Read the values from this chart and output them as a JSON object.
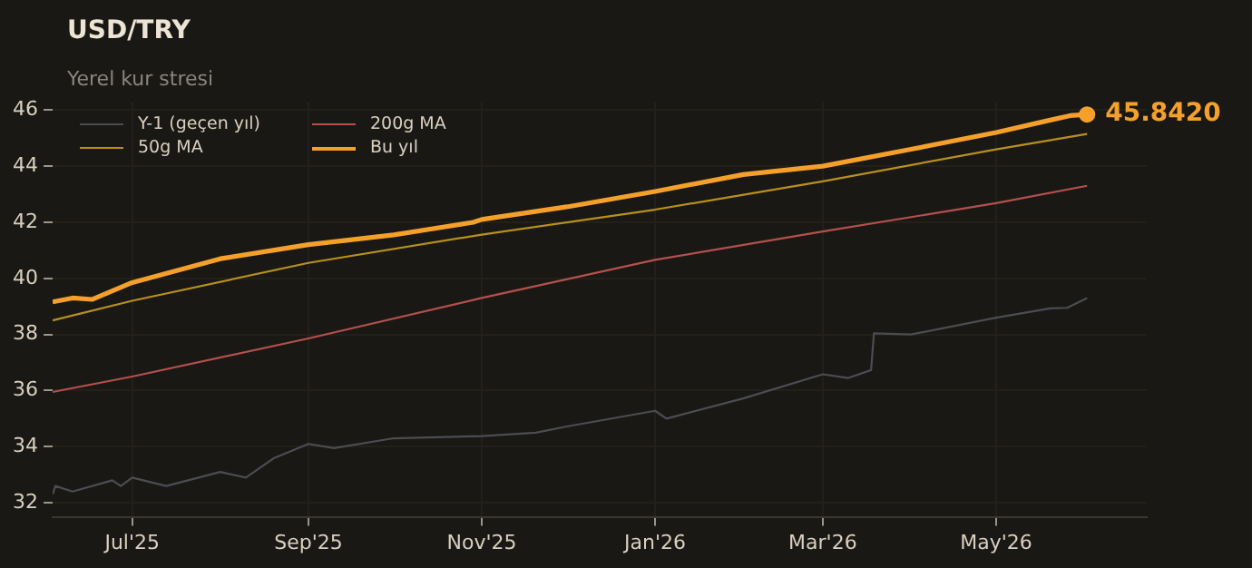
{
  "chart_data": {
    "type": "line",
    "title": "USD/TRY",
    "subtitle": "Yerel kur stresi",
    "xlim": [
      "2025-06-03",
      "2026-06-23"
    ],
    "xticks": [
      {
        "value": "2025-07-01",
        "label": "Jul'25"
      },
      {
        "value": "2025-09-01",
        "label": "Sep'25"
      },
      {
        "value": "2025-11-01",
        "label": "Nov'25"
      },
      {
        "value": "2026-01-01",
        "label": "Jan'26"
      },
      {
        "value": "2026-03-01",
        "label": "Mar'26"
      },
      {
        "value": "2026-05-01",
        "label": "May'26"
      }
    ],
    "ylim": [
      31.5,
      46.3
    ],
    "yticks": [
      32,
      34,
      36,
      38,
      40,
      42,
      44,
      46
    ],
    "grid": true,
    "legend": "top left",
    "marker": "none",
    "line_style": "solid",
    "series": [
      {
        "name": "Y-1 (geçen yıl)",
        "color": "#4a4d52",
        "x": [
          "2025-06-03",
          "2025-06-04",
          "2025-06-10",
          "2025-06-24",
          "2025-06-27",
          "2025-07-01",
          "2025-07-13",
          "2025-08-01",
          "2025-08-10",
          "2025-08-20",
          "2025-09-01",
          "2025-09-10",
          "2025-10-01",
          "2025-11-01",
          "2025-11-20",
          "2025-12-01",
          "2026-01-01",
          "2026-01-05",
          "2026-02-01",
          "2026-03-01",
          "2026-03-10",
          "2026-03-18",
          "2026-03-19",
          "2026-04-01",
          "2026-05-01",
          "2026-05-20",
          "2026-05-26",
          "2026-06-02"
        ],
        "values": [
          32.3,
          32.6,
          32.4,
          32.8,
          32.6,
          32.9,
          32.6,
          33.1,
          32.9,
          33.6,
          34.1,
          33.95,
          34.3,
          34.38,
          34.5,
          34.72,
          35.28,
          35.0,
          35.72,
          36.58,
          36.45,
          36.73,
          38.04,
          38.0,
          38.6,
          38.93,
          38.95,
          39.3
        ]
      },
      {
        "name": "50g MA",
        "color": "#b8901c",
        "x": [
          "2025-06-03",
          "2025-07-01",
          "2025-09-01",
          "2025-11-01",
          "2026-01-01",
          "2026-03-01",
          "2026-05-01",
          "2026-06-02"
        ],
        "values": [
          38.5,
          39.2,
          40.55,
          41.56,
          42.45,
          43.46,
          44.6,
          45.15
        ]
      },
      {
        "name": "200g MA",
        "color": "#b5504c",
        "x": [
          "2025-06-03",
          "2025-07-01",
          "2025-09-01",
          "2025-11-01",
          "2026-01-01",
          "2026-03-01",
          "2026-05-01",
          "2026-06-02"
        ],
        "values": [
          35.95,
          36.5,
          37.86,
          39.3,
          40.66,
          41.67,
          42.68,
          43.3
        ]
      },
      {
        "name": "Bu yıl",
        "color": "#f5a02a",
        "x": [
          "2025-06-03",
          "2025-06-10",
          "2025-06-17",
          "2025-07-01",
          "2025-08-01",
          "2025-09-01",
          "2025-10-01",
          "2025-10-29",
          "2025-11-01",
          "2025-12-01",
          "2026-01-01",
          "2026-02-01",
          "2026-03-01",
          "2026-04-01",
          "2026-05-01",
          "2026-05-20",
          "2026-05-27",
          "2026-06-02"
        ],
        "values": [
          39.16,
          39.3,
          39.25,
          39.85,
          40.7,
          41.2,
          41.55,
          42.0,
          42.1,
          42.55,
          43.1,
          43.7,
          44.0,
          44.6,
          45.2,
          45.64,
          45.8,
          45.842
        ]
      }
    ],
    "annotations": [
      {
        "text": "45.8420",
        "x": "2026-06-02",
        "y": 45.842
      }
    ]
  }
}
